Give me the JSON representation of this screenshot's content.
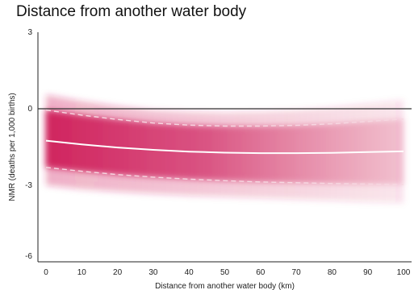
{
  "chart_data": {
    "type": "line",
    "title": "Distance from another water body",
    "xlabel": "Distance from another water body (km)",
    "ylabel": "NMR (deaths per 1,000 births)",
    "xlim": [
      0,
      100
    ],
    "ylim": [
      -6,
      3
    ],
    "x_ticks": [
      0,
      10,
      20,
      30,
      40,
      50,
      60,
      70,
      80,
      90,
      100
    ],
    "y_ticks": [
      3,
      0,
      -3,
      -6
    ],
    "reference_line": 0,
    "grid": false,
    "legend": "none",
    "colors": {
      "band": "#d0245e",
      "estimate_line": "#ffffff",
      "reference": "#333333"
    },
    "series": [
      {
        "x": [
          0,
          10,
          20,
          30,
          40,
          50,
          60,
          70,
          80,
          90,
          100
        ],
        "y": [
          -1.25,
          -1.4,
          -1.52,
          -1.61,
          -1.68,
          -1.72,
          -1.74,
          -1.74,
          -1.73,
          -1.7,
          -1.67
        ],
        "ci_low": [
          -2.3,
          -2.45,
          -2.58,
          -2.68,
          -2.76,
          -2.82,
          -2.87,
          -2.9,
          -2.93,
          -2.95,
          -2.97
        ],
        "ci_high": [
          -0.05,
          -0.25,
          -0.42,
          -0.56,
          -0.64,
          -0.68,
          -0.68,
          -0.65,
          -0.59,
          -0.5,
          -0.4
        ],
        "outer_low": [
          -3.0,
          -3.15,
          -3.25,
          -3.33,
          -3.4,
          -3.45,
          -3.5,
          -3.55,
          -3.6,
          -3.65,
          -3.7
        ],
        "outer_high": [
          0.55,
          0.3,
          0.1,
          -0.05,
          -0.12,
          -0.15,
          -0.12,
          -0.05,
          0.05,
          0.2,
          0.35
        ]
      }
    ]
  }
}
